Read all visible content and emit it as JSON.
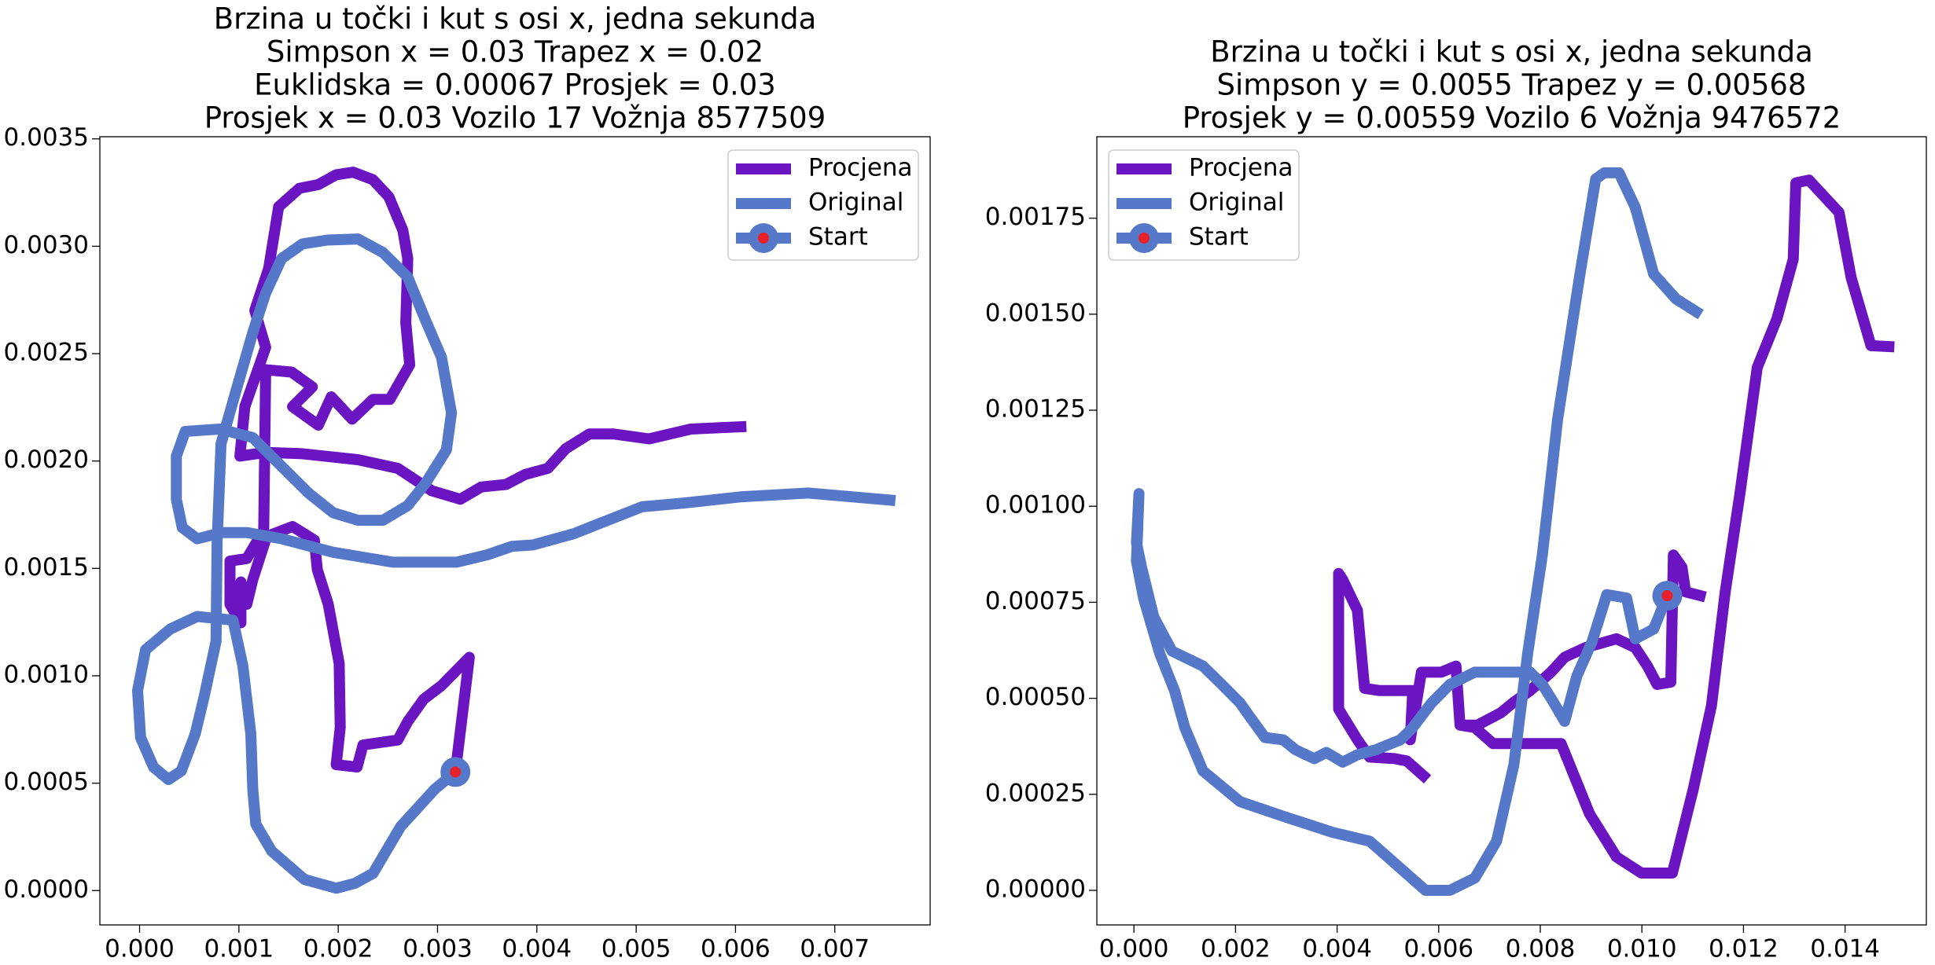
{
  "chart_data": [
    {
      "type": "line",
      "title": [
        "Brzina u točki i kut s osi x, jedna sekunda",
        "Simpson x = 0.03 Trapez x = 0.02",
        "Euklidska = 0.00067 Prosjek = 0.03",
        "Prosjek x = 0.03 Vozilo 17 Vožnja 8577509"
      ],
      "xlim": [
        -0.0004,
        0.00796
      ],
      "ylim": [
        -0.00016,
        0.00351
      ],
      "xticks": [
        {
          "value": 0,
          "label": "0.000"
        },
        {
          "value": 0.001,
          "label": "0.001"
        },
        {
          "value": 0.002,
          "label": "0.002"
        },
        {
          "value": 0.003,
          "label": "0.003"
        },
        {
          "value": 0.004,
          "label": "0.004"
        },
        {
          "value": 0.005,
          "label": "0.005"
        },
        {
          "value": 0.006,
          "label": "0.006"
        },
        {
          "value": 0.007,
          "label": "0.007"
        }
      ],
      "yticks": [
        {
          "value": 0,
          "label": "0.0000"
        },
        {
          "value": 0.0005,
          "label": "0.0005"
        },
        {
          "value": 0.001,
          "label": "0.0010"
        },
        {
          "value": 0.0015,
          "label": "0.0015"
        },
        {
          "value": 0.002,
          "label": "0.0020"
        },
        {
          "value": 0.0025,
          "label": "0.0025"
        },
        {
          "value": 0.003,
          "label": "0.0030"
        },
        {
          "value": 0.0035,
          "label": "0.0035"
        }
      ],
      "legend": "upper right",
      "series": [
        {
          "name": "Procjena",
          "color": "#6a14c2",
          "x": [
            0.00318,
            0.00332,
            0.00304,
            0.00286,
            0.0027,
            0.0026,
            0.00225,
            0.00219,
            0.00198,
            0.00202,
            0.00201,
            0.0019,
            0.00179,
            0.00176,
            0.00154,
            0.00128,
            0.00114,
            0.00108,
            0.00102,
            0.00102,
            0.00091,
            0.00091,
            0.00108,
            0.00125,
            0.00127,
            0.00153,
            0.00174,
            0.00154,
            0.0018,
            0.00193,
            0.00214,
            0.00235,
            0.00252,
            0.00272,
            0.00268,
            0.0027,
            0.00265,
            0.00251,
            0.00235,
            0.00215,
            0.00198,
            0.0018,
            0.00161,
            0.0014,
            0.0013,
            0.00116,
            0.00127,
            0.00106,
            0.00101,
            0.00127,
            0.00164,
            0.0022,
            0.0026,
            0.00294,
            0.00323,
            0.00344,
            0.00369,
            0.00388,
            0.00411,
            0.00429,
            0.00453,
            0.00477,
            0.00513,
            0.00555,
            0.00611
          ],
          "values": [
            0.000552,
            0.001086,
            0.000954,
            0.000891,
            0.000787,
            0.000701,
            0.000678,
            0.000575,
            0.000586,
            0.000759,
            0.001057,
            0.001333,
            0.001494,
            0.001632,
            0.001695,
            0.001649,
            0.001448,
            0.001333,
            0.001437,
            0.001247,
            0.001333,
            0.001534,
            0.001546,
            0.001678,
            0.002425,
            0.002414,
            0.002345,
            0.002253,
            0.002167,
            0.002299,
            0.002195,
            0.002287,
            0.002287,
            0.002448,
            0.002644,
            0.002943,
            0.003075,
            0.00323,
            0.00331,
            0.003345,
            0.003333,
            0.003287,
            0.00327,
            0.003184,
            0.002897,
            0.002701,
            0.002529,
            0.002253,
            0.002023,
            0.00204,
            0.002034,
            0.002006,
            0.001966,
            0.001862,
            0.001822,
            0.001879,
            0.001891,
            0.001937,
            0.001966,
            0.002057,
            0.002126,
            0.002126,
            0.002103,
            0.002149,
            0.002161
          ]
        },
        {
          "name": "Original",
          "color": "#5578c8",
          "x": [
            0.00318,
            0.00297,
            0.0028,
            0.00263,
            0.00235,
            0.00217,
            0.00198,
            0.00166,
            0.00133,
            0.00117,
            0.00114,
            0.00112,
            0.00104,
            0.00094,
            0.00058,
            0.00031,
            6e-05,
            -2e-05,
            1e-05,
            0.00014,
            0.00029,
            0.00042,
            0.00056,
            0.00065,
            0.00077,
            0.00078,
            0.00082,
            0.00096,
            0.00114,
            0.00127,
            0.00143,
            0.00164,
            0.00189,
            0.0022,
            0.00245,
            0.0027,
            0.00288,
            0.00304,
            0.00314,
            0.00309,
            0.00288,
            0.0027,
            0.00245,
            0.0022,
            0.00195,
            0.0017,
            0.00145,
            0.00114,
            0.00081,
            0.00046,
            0.00037,
            0.00037,
            0.00043,
            0.00058,
            0.00083,
            0.00108,
            0.00143,
            0.00195,
            0.00255,
            0.00319,
            0.0035,
            0.00375,
            0.00396,
            0.00437,
            0.00468,
            0.00506,
            0.00549,
            0.00605,
            0.00673,
            0.00761
          ],
          "values": [
            0.000552,
            0.000471,
            0.000385,
            0.000299,
            8e-05,
            3.4e-05,
            1.1e-05,
            5.2e-05,
            0.000184,
            0.00031,
            0.000471,
            0.00073,
            0.001046,
            0.001259,
            0.001276,
            0.001218,
            0.001121,
            0.000931,
            0.000713,
            0.000575,
            0.000517,
            0.000557,
            0.00073,
            0.000902,
            0.001161,
            0.001621,
            0.00208,
            0.00231,
            0.002598,
            0.002782,
            0.002943,
            0.003011,
            0.003029,
            0.003034,
            0.002971,
            0.002856,
            0.002655,
            0.002483,
            0.002224,
            0.002052,
            0.001897,
            0.001793,
            0.001724,
            0.001724,
            0.001759,
            0.001851,
            0.001966,
            0.002109,
            0.002149,
            0.002138,
            0.002023,
            0.001822,
            0.00169,
            0.001638,
            0.001667,
            0.001667,
            0.001638,
            0.001575,
            0.001529,
            0.001529,
            0.001563,
            0.001603,
            0.001609,
            0.001661,
            0.001718,
            0.001787,
            0.001805,
            0.001833,
            0.001851,
            0.001816
          ]
        },
        {
          "name": "Start",
          "color": "#5578c8",
          "marker_color": "#e8202a",
          "x": [
            0.00318
          ],
          "values": [
            0.000552
          ]
        }
      ]
    },
    {
      "type": "line",
      "title": [
        "Brzina u točki i kut s osi x, jedna sekunda",
        "Simpson y = 0.0055 Trapez y = 0.00568",
        "Prosjek y = 0.00559 Vozilo 6 Vožnja 9476572"
      ],
      "xlim": [
        -0.00073,
        0.0156
      ],
      "ylim": [
        -9e-05,
        0.001962
      ],
      "xticks": [
        {
          "value": 0,
          "label": "0.000"
        },
        {
          "value": 0.002,
          "label": "0.002"
        },
        {
          "value": 0.004,
          "label": "0.004"
        },
        {
          "value": 0.006,
          "label": "0.006"
        },
        {
          "value": 0.008,
          "label": "0.008"
        },
        {
          "value": 0.01,
          "label": "0.010"
        },
        {
          "value": 0.012,
          "label": "0.012"
        },
        {
          "value": 0.014,
          "label": "0.014"
        }
      ],
      "yticks": [
        {
          "value": 0,
          "label": "0.00000"
        },
        {
          "value": 0.00025,
          "label": "0.00025"
        },
        {
          "value": 0.0005,
          "label": "0.00050"
        },
        {
          "value": 0.00075,
          "label": "0.00075"
        },
        {
          "value": 0.001,
          "label": "0.00100"
        },
        {
          "value": 0.00125,
          "label": "0.00125"
        },
        {
          "value": 0.0015,
          "label": "0.00150"
        },
        {
          "value": 0.00175,
          "label": "0.00175"
        }
      ],
      "legend": "upper left",
      "series": [
        {
          "name": "Procjena",
          "color": "#6a14c2",
          "x": [
            0.00578,
            0.00537,
            0.00513,
            0.00464,
            0.0044,
            0.00403,
            0.00403,
            0.00411,
            0.0044,
            0.00454,
            0.00484,
            0.00549,
            0.00544,
            0.00566,
            0.00605,
            0.00634,
            0.00642,
            0.00676,
            0.00722,
            0.00746,
            0.0078,
            0.00821,
            0.00848,
            0.00889,
            0.0095,
            0.00987,
            0.01011,
            0.0103,
            0.01057,
            0.01062,
            0.01079,
            0.01086,
            0.01125,
            null,
            0.00642,
            0.00671,
            0.00707,
            0.00841,
            0.00897,
            0.0095,
            0.00999,
            0.0106,
            0.01101,
            0.01137,
            0.01164,
            0.01193,
            0.01227,
            0.01266,
            0.01298,
            0.01303,
            0.01329,
            0.01388,
            0.01412,
            0.01451,
            0.01497
          ],
          "values": [
            0.000289,
            0.000337,
            0.000343,
            0.000347,
            0.000392,
            0.000472,
            0.000825,
            0.000809,
            0.000729,
            0.000526,
            0.00052,
            0.00052,
            0.000392,
            0.000568,
            0.000568,
            0.000584,
            0.00043,
            0.00043,
            0.000462,
            0.000488,
            0.00052,
            0.000568,
            0.000607,
            0.000632,
            0.000655,
            0.000632,
            0.000584,
            0.000536,
            0.000542,
            0.000873,
            0.000841,
            0.000777,
            0.000764,
            null,
            0.00043,
            0.000424,
            0.000382,
            0.000382,
            0.000199,
            8.7e-05,
            4.5e-05,
            4.5e-05,
            0.000263,
            0.000481,
            0.000777,
            0.001033,
            0.001361,
            0.001489,
            0.001643,
            0.001842,
            0.001849,
            0.001765,
            0.001595,
            0.001418,
            0.001415
          ]
        },
        {
          "name": "Original",
          "color": "#5578c8",
          "x": [
            0.0105,
            0.01023,
            0.00987,
            0.0097,
            0.00931,
            0.00902,
            0.00872,
            0.00848,
            0.00824,
            0.00804,
            0.0078,
            0.00707,
            0.00671,
            0.00622,
            0.00586,
            0.00549,
            0.00525,
            0.00476,
            0.0044,
            0.00411,
            0.00379,
            0.00355,
            0.00318,
            0.00294,
            0.00258,
            0.00226,
            0.00209,
            0.00173,
            0.00136,
            0.00075,
            0.00039,
            0.00015,
            5e-05,
            0.0001,
            5e-05,
            0.00019,
            0.00051,
            0.0008,
            0.001,
            0.00136,
            0.00209,
            0.00294,
            0.00391,
            0.00464,
            0.00513,
            0.00574,
            0.00622,
            0.00671,
            0.00714,
            0.00748,
            0.00775,
            0.00804,
            0.00834,
            0.00877,
            0.00909,
            0.00926,
            0.00955,
            0.00987,
            0.01023,
            0.01067,
            0.01116
          ],
          "values": [
            0.000767,
            0.00068,
            0.000655,
            0.000761,
            0.00077,
            0.000648,
            0.000558,
            0.00044,
            0.000494,
            0.000536,
            0.000568,
            0.000568,
            0.000568,
            0.000536,
            0.000488,
            0.000424,
            0.000392,
            0.000366,
            0.000353,
            0.000334,
            0.000359,
            0.000343,
            0.000366,
            0.000392,
            0.000398,
            0.000456,
            0.000488,
            0.000536,
            0.000584,
            0.000623,
            0.000712,
            0.000841,
            0.000905,
            0.001033,
            0.000857,
            0.000761,
            0.000616,
            0.00052,
            0.000424,
            0.000311,
            0.000231,
            0.000193,
            0.000151,
            0.000128,
            7.1e-05,
            0,
            0,
            3.2e-05,
            0.000128,
            0.000327,
            0.000616,
            0.000873,
            0.001226,
            0.001595,
            0.001852,
            0.001868,
            0.001868,
            0.001778,
            0.001605,
            0.00154,
            0.001499
          ]
        },
        {
          "name": "Start",
          "color": "#5578c8",
          "marker_color": "#e8202a",
          "x": [
            0.0105
          ],
          "values": [
            0.000767
          ]
        }
      ]
    }
  ]
}
